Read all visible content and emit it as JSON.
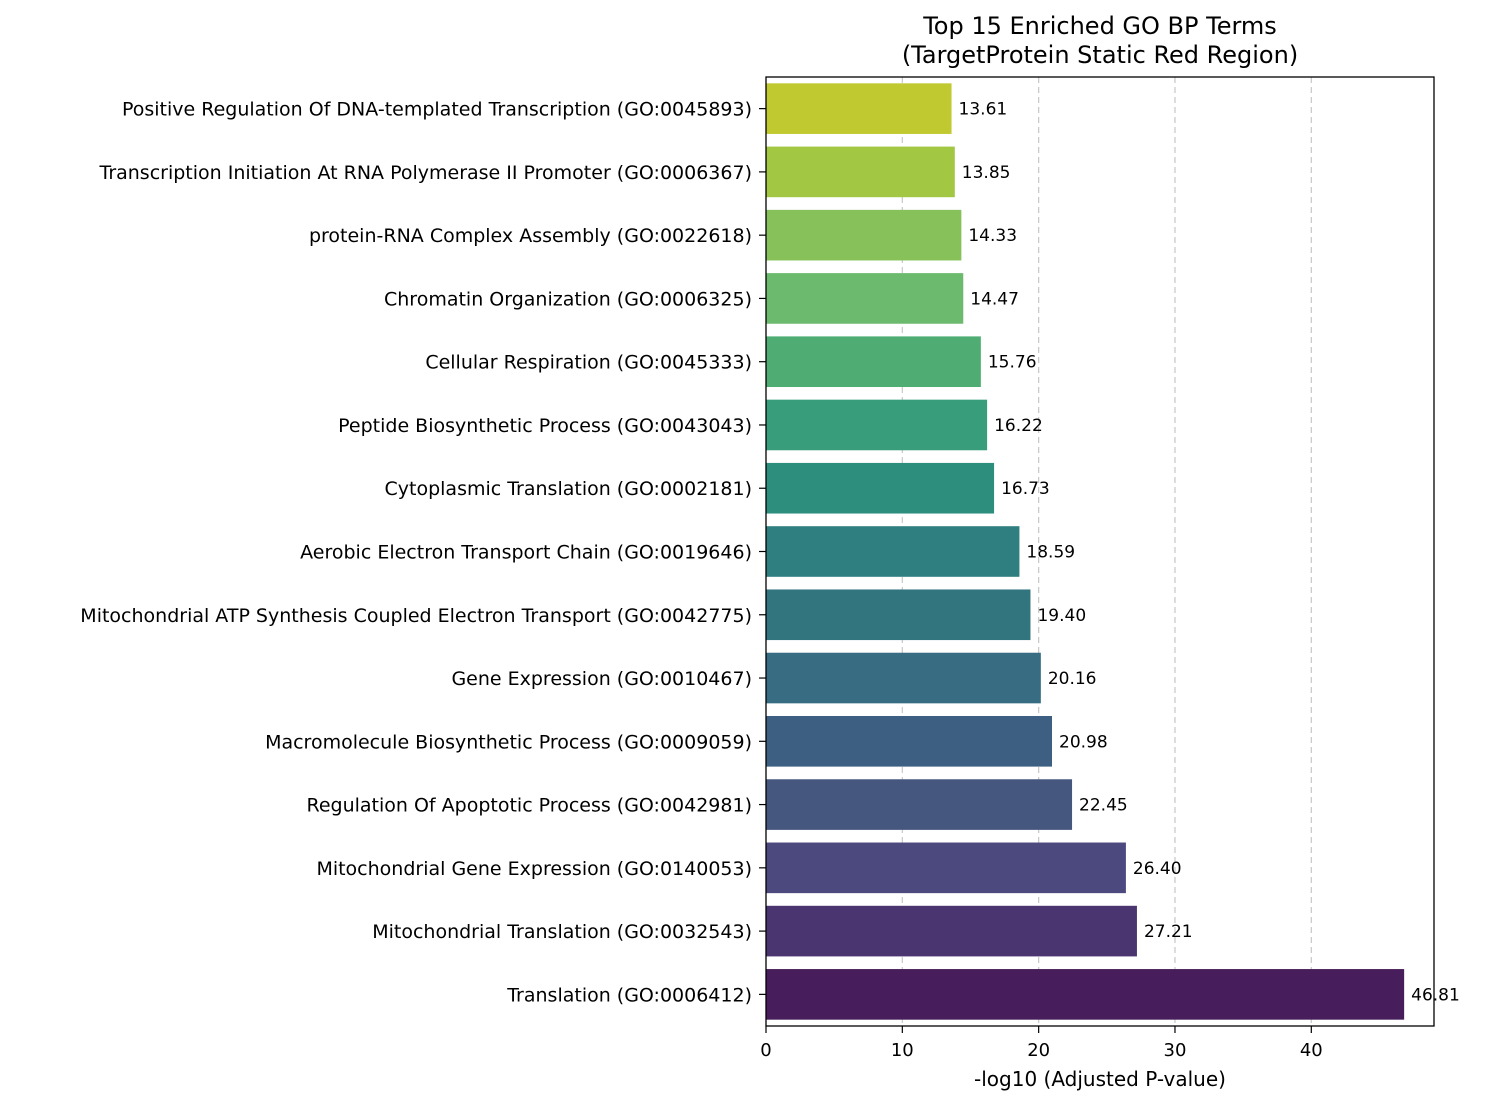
{
  "chart_data": {
    "type": "bar",
    "orientation": "horizontal",
    "title": "Top 15 Enriched GO BP Terms\n(TargetProtein Static Red Region)",
    "xlabel": "-log10 (Adjusted P-value)",
    "ylabel": "",
    "xlim": [
      0,
      49
    ],
    "xticks": [
      0,
      10,
      20,
      30,
      40
    ],
    "grid": "x-dashed",
    "colormap": "viridis",
    "categories": [
      "Positive Regulation Of DNA-templated Transcription (GO:0045893)",
      "Transcription Initiation At RNA Polymerase II Promoter (GO:0006367)",
      "protein-RNA Complex Assembly (GO:0022618)",
      "Chromatin Organization (GO:0006325)",
      "Cellular Respiration (GO:0045333)",
      "Peptide Biosynthetic Process (GO:0043043)",
      "Cytoplasmic Translation (GO:0002181)",
      "Aerobic Electron Transport Chain (GO:0019646)",
      "Mitochondrial ATP Synthesis Coupled Electron Transport (GO:0042775)",
      "Gene Expression (GO:0010467)",
      "Macromolecule Biosynthetic Process (GO:0009059)",
      "Regulation Of Apoptotic Process (GO:0042981)",
      "Mitochondrial Gene Expression (GO:0140053)",
      "Mitochondrial Translation (GO:0032543)",
      "Translation (GO:0006412)"
    ],
    "values": [
      13.61,
      13.85,
      14.33,
      14.47,
      15.76,
      16.22,
      16.73,
      18.59,
      19.4,
      20.16,
      20.98,
      22.45,
      26.4,
      27.21,
      46.81
    ],
    "value_labels": [
      "13.61",
      "13.85",
      "14.33",
      "14.47",
      "15.76",
      "16.22",
      "16.73",
      "18.59",
      "19.40",
      "20.16",
      "20.98",
      "22.45",
      "26.40",
      "27.21",
      "46.81"
    ],
    "colors": [
      "#c0c930",
      "#a2c742",
      "#87c159",
      "#6bba6e",
      "#4fad74",
      "#389d7b",
      "#2d8e7e",
      "#307f80",
      "#32757f",
      "#376c82",
      "#3d5f82",
      "#45577f",
      "#4b497d",
      "#4b3571",
      "#471e5b"
    ]
  }
}
